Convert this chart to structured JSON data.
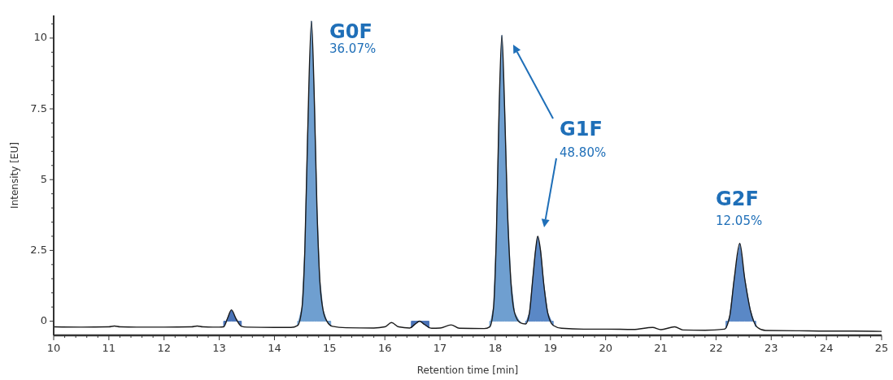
{
  "chart_data": {
    "type": "line",
    "xlabel": "Retention time [min]",
    "ylabel": "Intensity [EU]",
    "xlim": [
      10,
      25
    ],
    "ylim": [
      -0.5,
      10.8
    ],
    "xticks": [
      10,
      {
        "value": 10.2,
        "label": null
      },
      {
        "value": 10.4,
        "label": null
      },
      {
        "value": 10.6,
        "label": null
      },
      {
        "value": 10.8,
        "label": null
      },
      11,
      {
        "value": 11.2,
        "label": null
      },
      {
        "value": 11.4,
        "label": null
      },
      {
        "value": 11.6,
        "label": null
      },
      {
        "value": 11.8,
        "label": null
      },
      12,
      {
        "value": 12.2,
        "label": null
      },
      {
        "value": 12.4,
        "label": null
      },
      {
        "value": 12.6,
        "label": null
      },
      {
        "value": 12.8,
        "label": null
      },
      13,
      {
        "value": 13.2,
        "label": null
      },
      {
        "value": 13.4,
        "label": null
      },
      {
        "value": 13.6,
        "label": null
      },
      {
        "value": 13.8,
        "label": null
      },
      14,
      {
        "value": 14.2,
        "label": null
      },
      {
        "value": 14.4,
        "label": null
      },
      {
        "value": 14.6,
        "label": null
      },
      {
        "value": 14.8,
        "label": null
      },
      15,
      {
        "value": 15.2,
        "label": null
      },
      {
        "value": 15.4,
        "label": null
      },
      {
        "value": 15.6,
        "label": null
      },
      {
        "value": 15.8,
        "label": null
      },
      16,
      {
        "value": 16.2,
        "label": null
      },
      {
        "value": 16.4,
        "label": null
      },
      {
        "value": 16.6,
        "label": null
      },
      {
        "value": 16.8,
        "label": null
      },
      17,
      {
        "value": 17.2,
        "label": null
      },
      {
        "value": 17.4,
        "label": null
      },
      {
        "value": 17.6,
        "label": null
      },
      {
        "value": 17.8,
        "label": null
      },
      18,
      {
        "value": 18.2,
        "label": null
      },
      {
        "value": 18.4,
        "label": null
      },
      {
        "value": 18.6,
        "label": null
      },
      {
        "value": 18.8,
        "label": null
      },
      19,
      {
        "value": 19.2,
        "label": null
      },
      {
        "value": 19.4,
        "label": null
      },
      {
        "value": 19.6,
        "label": null
      },
      {
        "value": 19.8,
        "label": null
      },
      20,
      {
        "value": 20.2,
        "label": null
      },
      {
        "value": 20.4,
        "label": null
      },
      {
        "value": 20.6,
        "label": null
      },
      {
        "value": 20.8,
        "label": null
      },
      21,
      {
        "value": 21.2,
        "label": null
      },
      {
        "value": 21.4,
        "label": null
      },
      {
        "value": 21.6,
        "label": null
      },
      {
        "value": 21.8,
        "label": null
      },
      22,
      {
        "value": 22.2,
        "label": null
      },
      {
        "value": 22.4,
        "label": null
      },
      {
        "value": 22.6,
        "label": null
      },
      {
        "value": 22.8,
        "label": null
      },
      23,
      {
        "value": 23.2,
        "label": null
      },
      {
        "value": 23.4,
        "label": null
      },
      {
        "value": 23.6,
        "label": null
      },
      {
        "value": 23.8,
        "label": null
      },
      24,
      {
        "value": 24.2,
        "label": null
      },
      {
        "value": 24.4,
        "label": null
      },
      {
        "value": 24.6,
        "label": null
      },
      {
        "value": 24.8,
        "label": null
      },
      25
    ],
    "yticks": [
      0,
      {
        "value": 0.5,
        "label": null
      },
      {
        "value": 1,
        "label": null
      },
      {
        "value": 1.5,
        "label": null
      },
      {
        "value": 2,
        "label": null
      },
      2.5,
      {
        "value": 3,
        "label": null
      },
      {
        "value": 3.5,
        "label": null
      },
      {
        "value": 4,
        "label": null
      },
      {
        "value": 4.5,
        "label": null
      },
      5,
      {
        "value": 5.5,
        "label": null
      },
      {
        "value": 6,
        "label": null
      },
      {
        "value": 6.5,
        "label": null
      },
      {
        "value": 7,
        "label": null
      },
      7.5,
      {
        "value": 8,
        "label": null
      },
      {
        "value": 8.5,
        "label": null
      },
      {
        "value": 9,
        "label": null
      },
      {
        "value": 9.5,
        "label": null
      },
      10,
      {
        "value": 10.5,
        "label": null
      }
    ],
    "grid": false,
    "marker": "none",
    "line_style": "solid",
    "series": [
      {
        "type": "area",
        "color": "#4a73b8",
        "x": [
          13.08,
          13.15,
          13.22,
          13.3,
          13.4
        ],
        "values": [
          -0.2,
          0.1,
          0.4,
          0.1,
          -0.18
        ]
      },
      {
        "type": "area",
        "color": "#6f9fd0",
        "x": [
          14.42,
          14.5,
          14.55,
          14.6,
          14.67,
          14.72,
          14.77,
          14.82,
          14.88,
          14.95,
          15.02
        ],
        "values": [
          -0.15,
          0.5,
          2.5,
          6.5,
          10.6,
          8,
          4,
          1.5,
          0.4,
          0,
          -0.17
        ]
      },
      {
        "type": "area",
        "color": "#4a73b8",
        "x": [
          16.48,
          16.55,
          16.63,
          16.72,
          16.8
        ],
        "values": [
          -0.24,
          -0.1,
          0,
          -0.12,
          -0.24
        ]
      },
      {
        "type": "area",
        "color": "#6f9fd0",
        "x": [
          17.9,
          17.97,
          18.02,
          18.07,
          18.12,
          18.17,
          18.22,
          18.28,
          18.35,
          18.45
        ],
        "values": [
          -0.2,
          0.5,
          3,
          7.5,
          10.1,
          7.5,
          4,
          1.5,
          0.3,
          -0.05
        ]
      },
      {
        "type": "area",
        "color": "#5a88c6",
        "x": [
          18.55,
          18.62,
          18.68,
          18.73,
          18.77,
          18.82,
          18.88,
          18.95,
          19.05
        ],
        "values": [
          -0.1,
          0.3,
          1.5,
          2.5,
          3,
          2.5,
          1.3,
          0.3,
          -0.15
        ]
      },
      {
        "type": "area",
        "color": "#5a88c6",
        "x": [
          22.18,
          22.25,
          22.33,
          22.43,
          22.52,
          22.62,
          22.72
        ],
        "values": [
          -0.26,
          0.2,
          1.5,
          2.75,
          1.5,
          0.4,
          -0.2
        ]
      },
      {
        "color": "#1a1a1a",
        "x": [
          10,
          10.5,
          11,
          11.1,
          11.2,
          11.5,
          12,
          12.5,
          12.6,
          12.7,
          13,
          13.08,
          13.15,
          13.22,
          13.3,
          13.4,
          13.5,
          14,
          14.3,
          14.42,
          14.5,
          14.55,
          14.6,
          14.67,
          14.72,
          14.77,
          14.82,
          14.88,
          14.95,
          15.05,
          15.3,
          15.8,
          16,
          16.12,
          16.25,
          16.45,
          16.55,
          16.63,
          16.72,
          16.85,
          17,
          17.2,
          17.35,
          17.8,
          17.9,
          17.97,
          18.02,
          18.07,
          18.12,
          18.17,
          18.22,
          18.28,
          18.35,
          18.45,
          18.55,
          18.62,
          18.68,
          18.73,
          18.77,
          18.82,
          18.88,
          18.95,
          19.05,
          19.2,
          19.6,
          20,
          20.5,
          20.85,
          21,
          21.25,
          21.4,
          21.8,
          22.15,
          22.25,
          22.33,
          22.43,
          22.52,
          22.62,
          22.75,
          22.9,
          23.5,
          24,
          24.5,
          25
        ],
        "values": [
          -0.2,
          -0.21,
          -0.2,
          -0.17,
          -0.2,
          -0.21,
          -0.21,
          -0.2,
          -0.17,
          -0.2,
          -0.21,
          -0.2,
          0.1,
          0.4,
          0.1,
          -0.18,
          -0.21,
          -0.22,
          -0.22,
          -0.15,
          0.5,
          2.5,
          6.5,
          10.6,
          8,
          4,
          1.5,
          0.4,
          0,
          -0.18,
          -0.23,
          -0.24,
          -0.2,
          -0.05,
          -0.2,
          -0.24,
          -0.1,
          0,
          -0.12,
          -0.25,
          -0.24,
          -0.13,
          -0.25,
          -0.26,
          -0.2,
          0.5,
          3,
          7.5,
          10.1,
          7.5,
          4,
          1.5,
          0.3,
          -0.05,
          -0.1,
          0.3,
          1.5,
          2.5,
          3,
          2.5,
          1.3,
          0.3,
          -0.15,
          -0.25,
          -0.28,
          -0.28,
          -0.29,
          -0.22,
          -0.3,
          -0.2,
          -0.31,
          -0.32,
          -0.28,
          0.2,
          1.5,
          2.75,
          1.5,
          0.4,
          -0.22,
          -0.33,
          -0.34,
          -0.35,
          -0.35,
          -0.36
        ]
      }
    ],
    "annotations": [
      "G0F",
      "36.07%",
      "G1F",
      "48.80%",
      "G2F",
      "12.05%"
    ]
  }
}
